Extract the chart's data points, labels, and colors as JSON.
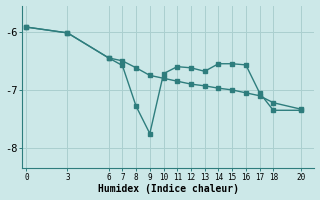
{
  "xlabel": "Humidex (Indice chaleur)",
  "background_color": "#cce8e8",
  "line_color": "#2e7d7d",
  "grid_color": "#aacfcf",
  "line1_x": [
    0,
    3,
    6,
    7,
    8,
    9,
    10,
    11,
    12,
    13,
    14,
    15,
    16,
    17,
    18,
    20
  ],
  "line1_y": [
    -5.92,
    -6.02,
    -6.45,
    -6.5,
    -6.62,
    -6.75,
    -6.8,
    -6.85,
    -6.9,
    -6.93,
    -6.97,
    -7.0,
    -7.05,
    -7.1,
    -7.22,
    -7.33
  ],
  "line2_x": [
    0,
    3,
    6,
    7,
    8,
    9,
    10,
    11,
    12,
    13,
    14,
    15,
    16,
    17,
    18,
    20
  ],
  "line2_y": [
    -5.92,
    -6.02,
    -6.45,
    -6.58,
    -7.28,
    -7.75,
    -6.72,
    -6.6,
    -6.62,
    -6.68,
    -6.55,
    -6.55,
    -6.57,
    -7.05,
    -7.35,
    -7.35
  ],
  "xlim": [
    -0.3,
    21.0
  ],
  "ylim": [
    -8.35,
    -5.55
  ],
  "yticks": [
    -8,
    -7,
    -6
  ],
  "xticks": [
    0,
    3,
    6,
    7,
    8,
    9,
    10,
    11,
    12,
    13,
    14,
    15,
    16,
    17,
    18,
    20
  ]
}
